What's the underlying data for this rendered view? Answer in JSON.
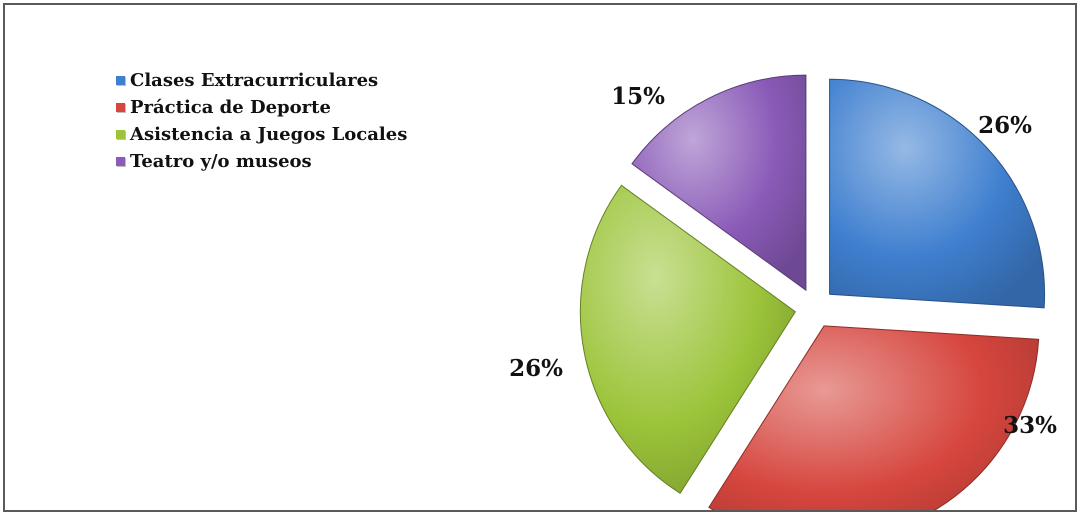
{
  "chart_data": {
    "type": "pie",
    "title": "",
    "categories": [
      "Clases Extracurriculares",
      "Práctica de Deporte",
      "Asistencia a Juegos Locales",
      "Teatro y/o museos"
    ],
    "values": [
      26,
      33,
      26,
      15
    ],
    "labels": [
      "26%",
      "33%",
      "26%",
      "15%"
    ],
    "colors": [
      "#3f7fcf",
      "#d6463e",
      "#9cc43a",
      "#8a5bb8"
    ],
    "exploded": true,
    "legend_position": "top-left"
  }
}
